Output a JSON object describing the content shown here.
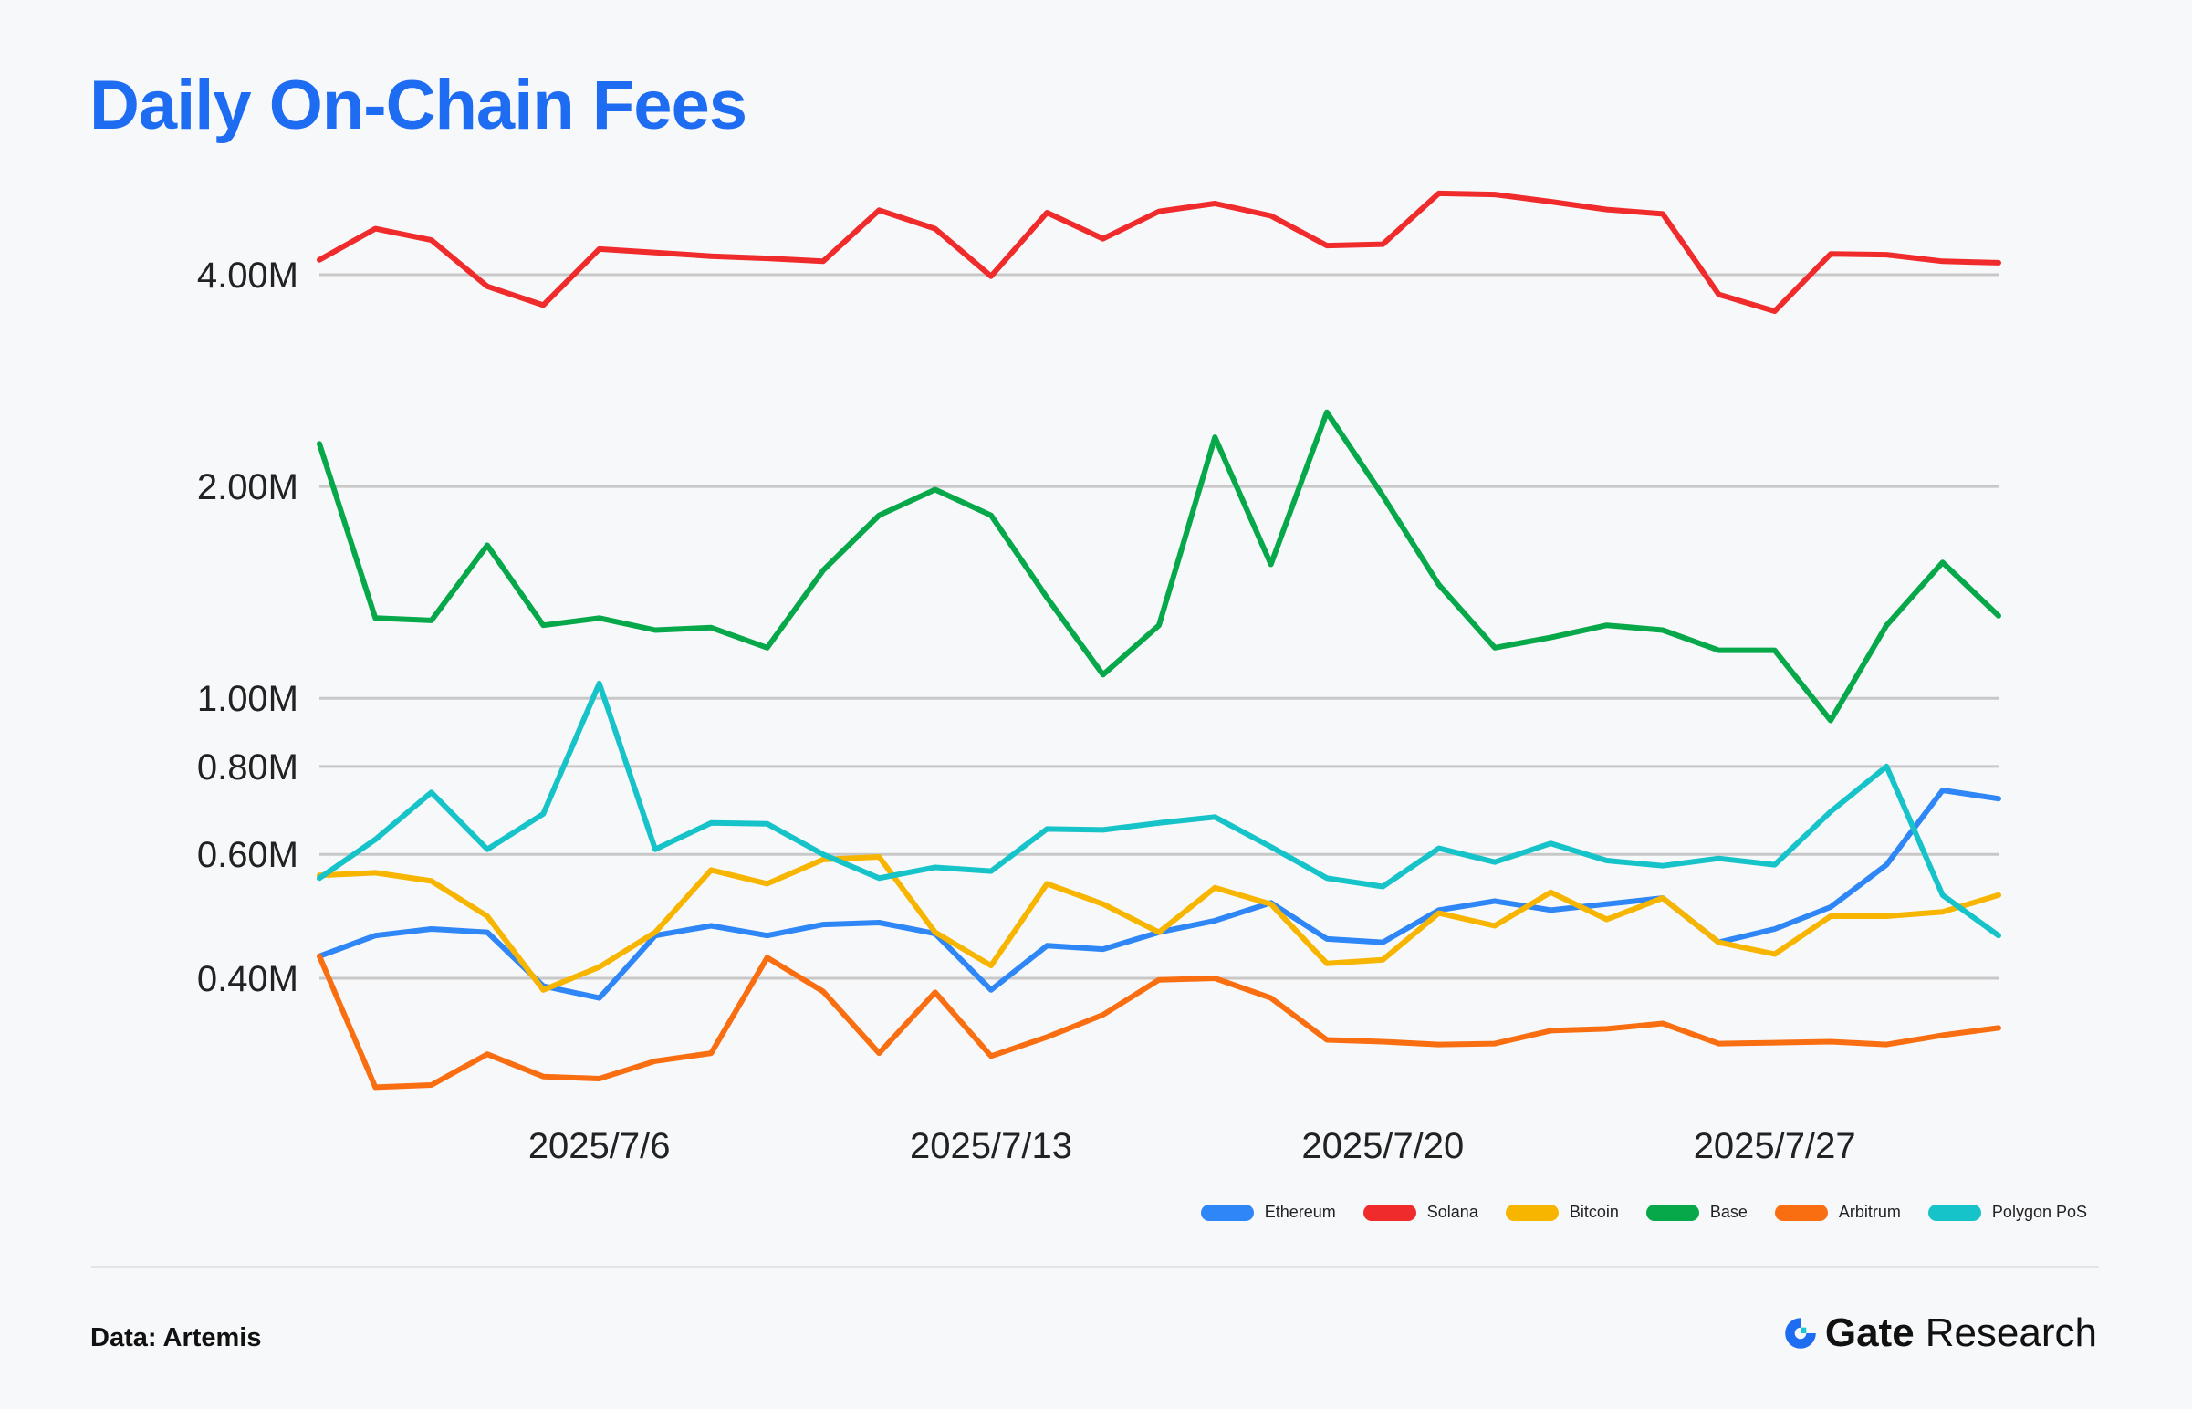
{
  "title": "Daily On-Chain Fees",
  "source": "Data: Artemis",
  "brand": {
    "name": "Gate",
    "sub": "Research"
  },
  "chart_data": {
    "type": "line",
    "title": "Daily On-Chain Fees",
    "yscale": "log",
    "ylim": [
      280000,
      5000000
    ],
    "yticks": [
      400000,
      600000,
      800000,
      1000000,
      2000000,
      4000000
    ],
    "ytick_labels": [
      "0.40M",
      "0.60M",
      "0.80M",
      "1.00M",
      "2.00M",
      "4.00M"
    ],
    "x": [
      "2025/7/1",
      "2025/7/2",
      "2025/7/3",
      "2025/7/4",
      "2025/7/5",
      "2025/7/6",
      "2025/7/7",
      "2025/7/8",
      "2025/7/9",
      "2025/7/10",
      "2025/7/11",
      "2025/7/12",
      "2025/7/13",
      "2025/7/14",
      "2025/7/15",
      "2025/7/16",
      "2025/7/17",
      "2025/7/18",
      "2025/7/19",
      "2025/7/20",
      "2025/7/21",
      "2025/7/22",
      "2025/7/23",
      "2025/7/24",
      "2025/7/25",
      "2025/7/26",
      "2025/7/27",
      "2025/7/28",
      "2025/7/29",
      "2025/7/30",
      "2025/7/31"
    ],
    "xticks": [
      "2025/7/6",
      "2025/7/13",
      "2025/7/20",
      "2025/7/27"
    ],
    "legend_position": "bottom-right",
    "grid": true,
    "series": [
      {
        "name": "Ethereum",
        "color": "#2f86f6",
        "values": [
          430000,
          460000,
          470000,
          465000,
          390000,
          375000,
          460000,
          475000,
          460000,
          477000,
          480000,
          463000,
          385000,
          445000,
          440000,
          465000,
          483000,
          512000,
          455000,
          450000,
          500000,
          515000,
          500000,
          510000,
          520000,
          450000,
          470000,
          505000,
          580000,
          740000,
          720000
        ]
      },
      {
        "name": "Solana",
        "color": "#f02b2b",
        "values": [
          4200000,
          4650000,
          4480000,
          3850000,
          3620000,
          4350000,
          4300000,
          4250000,
          4220000,
          4180000,
          4940000,
          4650000,
          3980000,
          4900000,
          4500000,
          4920000,
          5050000,
          4850000,
          4400000,
          4420000,
          5220000,
          5200000,
          5080000,
          4950000,
          4880000,
          3750000,
          3550000,
          4280000,
          4270000,
          4180000,
          4160000
        ]
      },
      {
        "name": "Bitcoin",
        "color": "#f7b500",
        "values": [
          560000,
          565000,
          550000,
          490000,
          385000,
          415000,
          465000,
          570000,
          545000,
          590000,
          595000,
          465000,
          417000,
          545000,
          510000,
          465000,
          538000,
          510000,
          420000,
          425000,
          495000,
          475000,
          530000,
          485000,
          520000,
          450000,
          433000,
          490000,
          490000,
          497000,
          525000
        ]
      },
      {
        "name": "Base",
        "color": "#06a84a",
        "values": [
          2300000,
          1300000,
          1290000,
          1650000,
          1270000,
          1300000,
          1250000,
          1260000,
          1180000,
          1520000,
          1820000,
          1980000,
          1820000,
          1390000,
          1080000,
          1270000,
          2350000,
          1550000,
          2550000,
          1940000,
          1450000,
          1180000,
          1220000,
          1270000,
          1250000,
          1170000,
          1170000,
          930000,
          1270000,
          1560000,
          1310000
        ]
      },
      {
        "name": "Arbitrum",
        "color": "#fa6e12",
        "values": [
          430000,
          280000,
          282000,
          312000,
          290000,
          288000,
          305000,
          313000,
          428000,
          383000,
          313000,
          382000,
          310000,
          330000,
          355000,
          398000,
          400000,
          375000,
          327000,
          325000,
          322000,
          323000,
          337000,
          339000,
          345000,
          323000,
          324000,
          325000,
          322000,
          332000,
          340000
        ]
      },
      {
        "name": "Polygon PoS",
        "color": "#16c3c9",
        "values": [
          555000,
          630000,
          735000,
          610000,
          685000,
          1050000,
          610000,
          665000,
          663000,
          600000,
          555000,
          575000,
          568000,
          652000,
          650000,
          665000,
          678000,
          615000,
          555000,
          540000,
          612000,
          585000,
          622000,
          588000,
          578000,
          592000,
          580000,
          690000,
          800000,
          525000,
          460000
        ]
      }
    ]
  }
}
